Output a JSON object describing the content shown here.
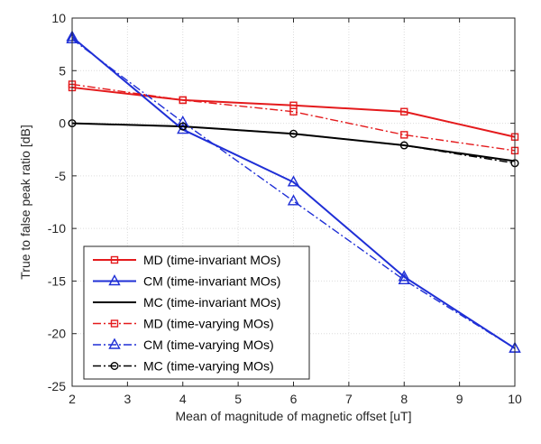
{
  "chart_data": {
    "type": "line",
    "xlabel": "Mean of magnitude of magnetic offset [uT]",
    "ylabel": "True to false peak ratio [dB]",
    "xlim": [
      2,
      10
    ],
    "ylim": [
      -25,
      10
    ],
    "xticks": [
      2,
      3,
      4,
      5,
      6,
      7,
      8,
      9,
      10
    ],
    "yticks": [
      -25,
      -20,
      -15,
      -10,
      -5,
      0,
      5,
      10
    ],
    "grid": true,
    "legend_position": "bottom-left",
    "x": [
      2,
      4,
      6,
      8,
      10
    ],
    "series": [
      {
        "name": "MD (time-invariant MOs)",
        "color": "#e41a1c",
        "line_style": "solid",
        "marker": "square",
        "values": [
          3.4,
          2.2,
          1.7,
          1.1,
          -1.3
        ]
      },
      {
        "name": "CM (time-invariant MOs)",
        "color": "#1f2fd6",
        "line_style": "solid",
        "marker": "triangle",
        "values": [
          8.2,
          -0.6,
          -5.6,
          -14.6,
          -21.4
        ]
      },
      {
        "name": "MC (time-invariant MOs)",
        "color": "#000000",
        "line_style": "solid",
        "marker": "none",
        "values": [
          0.0,
          -0.3,
          -1.0,
          -2.1,
          -3.6
        ]
      },
      {
        "name": "MD (time-varying MOs)",
        "color": "#e41a1c",
        "line_style": "dash-dot",
        "marker": "square",
        "values": [
          3.7,
          2.2,
          1.1,
          -1.1,
          -2.6
        ]
      },
      {
        "name": "CM (time-varying MOs)",
        "color": "#1f2fd6",
        "line_style": "dash-dot",
        "marker": "triangle",
        "values": [
          8.0,
          0.1,
          -7.4,
          -14.9,
          -21.4
        ]
      },
      {
        "name": "MC (time-varying MOs)",
        "color": "#000000",
        "line_style": "dash-dot",
        "marker": "circle",
        "values": [
          0.0,
          -0.3,
          -1.0,
          -2.1,
          -3.8
        ]
      }
    ]
  }
}
